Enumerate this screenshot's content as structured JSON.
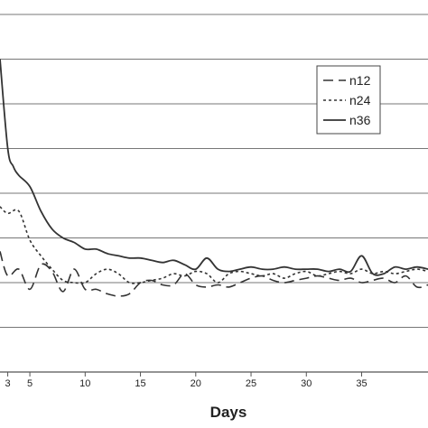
{
  "chart_data": {
    "type": "line",
    "xlabel": "Days",
    "ylabel": "",
    "title": "",
    "xlim": [
      2.3,
      41
    ],
    "ylim": [
      0,
      8
    ],
    "x_ticks": [
      5,
      10,
      15,
      20,
      25,
      30,
      35
    ],
    "x_tick_labels": [
      "5",
      "10",
      "15",
      "20",
      "25",
      "30",
      "35"
    ],
    "partial_tick_labels": [
      "3"
    ],
    "grid": "horizontal",
    "legend_position": "top-right",
    "series": [
      {
        "name": "n12",
        "style": "dashed",
        "color": "#333333",
        "x": [
          2.3,
          3,
          4,
          5,
          6,
          7,
          8,
          9,
          10,
          11,
          12,
          13,
          14,
          15,
          16,
          17,
          18,
          19,
          20,
          21,
          22,
          23,
          24,
          25,
          26,
          27,
          28,
          29,
          30,
          31,
          32,
          33,
          34,
          35,
          36,
          37,
          38,
          39,
          40,
          41
        ],
        "y": [
          2.7,
          2.15,
          2.3,
          1.85,
          2.4,
          2.25,
          1.8,
          2.3,
          1.85,
          1.85,
          1.75,
          1.7,
          1.75,
          2.0,
          2.05,
          1.95,
          1.95,
          2.2,
          1.95,
          1.9,
          1.95,
          1.9,
          2.0,
          2.1,
          2.15,
          2.05,
          2.0,
          2.05,
          2.1,
          2.15,
          2.1,
          2.05,
          2.1,
          2.0,
          2.05,
          2.1,
          2.0,
          2.15,
          1.9,
          1.95
        ]
      },
      {
        "name": "n24",
        "style": "dotted",
        "color": "#333333",
        "x": [
          2.3,
          3,
          4,
          5,
          6,
          7,
          8,
          9,
          10,
          11,
          12,
          13,
          14,
          15,
          16,
          17,
          18,
          19,
          20,
          21,
          22,
          23,
          24,
          25,
          26,
          27,
          28,
          29,
          30,
          31,
          32,
          33,
          34,
          35,
          36,
          37,
          38,
          39,
          40,
          41
        ],
        "y": [
          3.7,
          3.55,
          3.6,
          2.95,
          2.6,
          2.3,
          2.05,
          2.0,
          2.0,
          2.2,
          2.3,
          2.2,
          2.0,
          2.0,
          2.05,
          2.1,
          2.2,
          2.15,
          2.25,
          2.2,
          2.0,
          2.2,
          2.25,
          2.2,
          2.15,
          2.2,
          2.1,
          2.2,
          2.25,
          2.15,
          2.2,
          2.25,
          2.2,
          2.3,
          2.2,
          2.25,
          2.2,
          2.25,
          2.3,
          2.25
        ]
      },
      {
        "name": "n36",
        "style": "solid",
        "color": "#333333",
        "x": [
          2.3,
          3,
          3.5,
          4,
          5,
          6,
          7,
          8,
          9,
          10,
          11,
          12,
          13,
          14,
          15,
          16,
          17,
          18,
          19,
          20,
          21,
          22,
          23,
          24,
          25,
          26,
          27,
          28,
          29,
          30,
          31,
          32,
          33,
          34,
          35,
          36,
          37,
          38,
          39,
          40,
          41
        ],
        "y": [
          7.0,
          5.0,
          4.6,
          4.4,
          4.15,
          3.6,
          3.2,
          3.0,
          2.9,
          2.75,
          2.75,
          2.65,
          2.6,
          2.55,
          2.55,
          2.5,
          2.45,
          2.5,
          2.4,
          2.3,
          2.55,
          2.3,
          2.25,
          2.3,
          2.35,
          2.3,
          2.3,
          2.35,
          2.3,
          2.3,
          2.3,
          2.25,
          2.3,
          2.25,
          2.6,
          2.2,
          2.2,
          2.35,
          2.3,
          2.35,
          2.3
        ]
      }
    ]
  }
}
